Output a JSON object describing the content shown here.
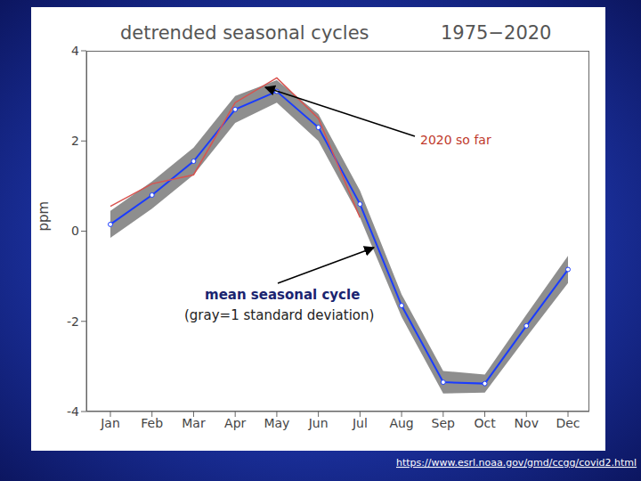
{
  "chart_data": {
    "type": "line",
    "title": "detrended seasonal cycles",
    "subtitle": "1975−2020",
    "y_label": "ppm",
    "annotations": [
      "(gray=1 standard deviation)"
    ],
    "source": "https://www.esrl.noaa.gov/gmd/ccgg/covid2.html",
    "categories": [
      "Jan",
      "Feb",
      "Mar",
      "Apr",
      "May",
      "Jun",
      "Jul",
      "Aug",
      "Sep",
      "Oct",
      "Nov",
      "Dec"
    ],
    "ylim": [
      -4,
      4
    ],
    "yticks": [
      -4,
      -2,
      0,
      2,
      4
    ],
    "grid": false,
    "series": [
      {
        "name": "mean seasonal cycle",
        "color": "#1a3cff",
        "marker": "circle",
        "values": [
          0.15,
          0.8,
          1.55,
          2.7,
          3.1,
          2.3,
          0.6,
          -1.65,
          -3.35,
          -3.38,
          -2.1,
          -0.85
        ],
        "sd": [
          0.3,
          0.3,
          0.3,
          0.3,
          0.25,
          0.3,
          0.3,
          0.25,
          0.25,
          0.2,
          0.25,
          0.3
        ]
      },
      {
        "name": "2020 so far",
        "color": "#d9534f",
        "line_style": "solid",
        "values": [
          0.55,
          1.05,
          1.25,
          2.85,
          3.4,
          2.5,
          0.3,
          null,
          null,
          null,
          null,
          null
        ]
      }
    ]
  }
}
